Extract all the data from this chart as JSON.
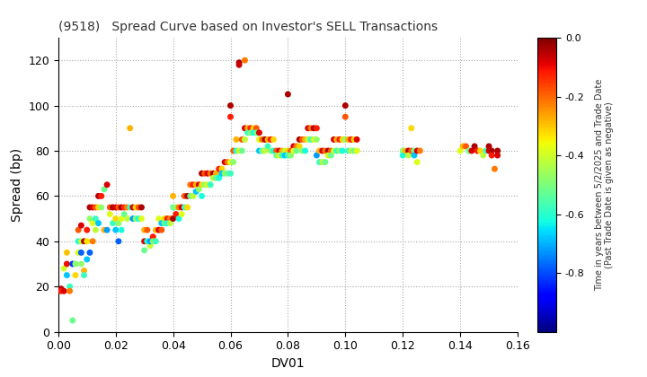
{
  "title": "(9518)   Spread Curve based on Investor's SELL Transactions",
  "xlabel": "DV01",
  "ylabel": "Spread (bp)",
  "colorbar_label": "Time in years between 5/2/2025 and Trade Date\n(Past Trade Date is given as negative)",
  "xlim": [
    0.0,
    0.16
  ],
  "ylim": [
    0,
    130
  ],
  "xticks": [
    0.0,
    0.02,
    0.04,
    0.06,
    0.08,
    0.1,
    0.12,
    0.14,
    0.16
  ],
  "yticks": [
    0,
    20,
    40,
    60,
    80,
    100,
    120
  ],
  "clim": [
    -1.0,
    0.0
  ],
  "cticks": [
    0.0,
    -0.2,
    -0.4,
    -0.6,
    -0.8
  ],
  "points": [
    [
      0.001,
      19,
      -0.05
    ],
    [
      0.001,
      18,
      -0.12
    ],
    [
      0.002,
      28,
      -0.4
    ],
    [
      0.002,
      18,
      -0.08
    ],
    [
      0.003,
      30,
      -0.1
    ],
    [
      0.003,
      25,
      -0.68
    ],
    [
      0.003,
      35,
      -0.3
    ],
    [
      0.004,
      20,
      -0.58
    ],
    [
      0.004,
      18,
      -0.22
    ],
    [
      0.005,
      5,
      -0.52
    ],
    [
      0.005,
      30,
      -0.82
    ],
    [
      0.006,
      25,
      -0.32
    ],
    [
      0.006,
      30,
      -0.48
    ],
    [
      0.007,
      35,
      -0.38
    ],
    [
      0.007,
      45,
      -0.18
    ],
    [
      0.007,
      40,
      -0.62
    ],
    [
      0.008,
      47,
      -0.08
    ],
    [
      0.008,
      35,
      -0.78
    ],
    [
      0.008,
      30,
      -0.48
    ],
    [
      0.008,
      40,
      -0.42
    ],
    [
      0.009,
      40,
      -0.04
    ],
    [
      0.009,
      27,
      -0.28
    ],
    [
      0.009,
      25,
      -0.58
    ],
    [
      0.01,
      40,
      -0.33
    ],
    [
      0.01,
      32,
      -0.68
    ],
    [
      0.01,
      45,
      -0.12
    ],
    [
      0.011,
      55,
      -0.04
    ],
    [
      0.011,
      50,
      -0.48
    ],
    [
      0.011,
      35,
      -0.78
    ],
    [
      0.012,
      40,
      -0.22
    ],
    [
      0.012,
      55,
      -0.08
    ],
    [
      0.012,
      48,
      -0.38
    ],
    [
      0.013,
      55,
      -0.18
    ],
    [
      0.013,
      50,
      -0.58
    ],
    [
      0.013,
      45,
      -0.42
    ],
    [
      0.014,
      60,
      -0.04
    ],
    [
      0.014,
      55,
      -0.32
    ],
    [
      0.014,
      48,
      -0.68
    ],
    [
      0.015,
      60,
      -0.12
    ],
    [
      0.015,
      55,
      -0.48
    ],
    [
      0.016,
      45,
      -0.28
    ],
    [
      0.016,
      63,
      -0.52
    ],
    [
      0.017,
      65,
      -0.08
    ],
    [
      0.017,
      45,
      -0.72
    ],
    [
      0.018,
      55,
      -0.18
    ],
    [
      0.018,
      52,
      -0.38
    ],
    [
      0.019,
      55,
      -0.04
    ],
    [
      0.019,
      48,
      -0.58
    ],
    [
      0.02,
      55,
      -0.08
    ],
    [
      0.02,
      50,
      -0.32
    ],
    [
      0.02,
      45,
      -0.68
    ],
    [
      0.021,
      55,
      -0.18
    ],
    [
      0.021,
      48,
      -0.48
    ],
    [
      0.021,
      40,
      -0.78
    ],
    [
      0.022,
      55,
      -0.04
    ],
    [
      0.022,
      50,
      -0.38
    ],
    [
      0.022,
      45,
      -0.62
    ],
    [
      0.023,
      55,
      -0.14
    ],
    [
      0.023,
      52,
      -0.52
    ],
    [
      0.024,
      55,
      -0.22
    ],
    [
      0.024,
      50,
      -0.42
    ],
    [
      0.025,
      90,
      -0.28
    ],
    [
      0.025,
      55,
      -0.58
    ],
    [
      0.026,
      55,
      -0.08
    ],
    [
      0.026,
      50,
      -0.72
    ],
    [
      0.027,
      55,
      -0.32
    ],
    [
      0.027,
      50,
      -0.48
    ],
    [
      0.028,
      55,
      -0.18
    ],
    [
      0.028,
      50,
      -0.62
    ],
    [
      0.029,
      55,
      -0.04
    ],
    [
      0.029,
      50,
      -0.38
    ],
    [
      0.03,
      40,
      -0.08
    ],
    [
      0.03,
      36,
      -0.52
    ],
    [
      0.03,
      45,
      -0.28
    ],
    [
      0.031,
      40,
      -0.62
    ],
    [
      0.031,
      45,
      -0.18
    ],
    [
      0.032,
      38,
      -0.42
    ],
    [
      0.032,
      40,
      -0.72
    ],
    [
      0.033,
      42,
      -0.12
    ],
    [
      0.033,
      40,
      -0.48
    ],
    [
      0.034,
      45,
      -0.28
    ],
    [
      0.034,
      40,
      -0.58
    ],
    [
      0.035,
      45,
      -0.08
    ],
    [
      0.035,
      50,
      -0.38
    ],
    [
      0.036,
      45,
      -0.18
    ],
    [
      0.036,
      48,
      -0.68
    ],
    [
      0.037,
      50,
      -0.32
    ],
    [
      0.037,
      48,
      -0.52
    ],
    [
      0.038,
      50,
      -0.12
    ],
    [
      0.038,
      48,
      -0.62
    ],
    [
      0.039,
      50,
      -0.22
    ],
    [
      0.039,
      48,
      -0.42
    ],
    [
      0.04,
      50,
      -0.04
    ],
    [
      0.04,
      60,
      -0.28
    ],
    [
      0.04,
      55,
      -0.52
    ],
    [
      0.041,
      52,
      -0.12
    ],
    [
      0.041,
      55,
      -0.48
    ],
    [
      0.042,
      55,
      -0.22
    ],
    [
      0.042,
      50,
      -0.62
    ],
    [
      0.043,
      55,
      -0.08
    ],
    [
      0.043,
      52,
      -0.38
    ],
    [
      0.044,
      60,
      -0.18
    ],
    [
      0.044,
      55,
      -0.58
    ],
    [
      0.045,
      60,
      -0.04
    ],
    [
      0.045,
      55,
      -0.32
    ],
    [
      0.046,
      65,
      -0.22
    ],
    [
      0.046,
      60,
      -0.52
    ],
    [
      0.047,
      65,
      -0.12
    ],
    [
      0.047,
      60,
      -0.42
    ],
    [
      0.048,
      65,
      -0.28
    ],
    [
      0.048,
      62,
      -0.68
    ],
    [
      0.049,
      65,
      -0.08
    ],
    [
      0.049,
      63,
      -0.48
    ],
    [
      0.05,
      70,
      -0.04
    ],
    [
      0.05,
      65,
      -0.32
    ],
    [
      0.05,
      60,
      -0.62
    ],
    [
      0.051,
      70,
      -0.18
    ],
    [
      0.051,
      65,
      -0.48
    ],
    [
      0.052,
      70,
      -0.08
    ],
    [
      0.052,
      65,
      -0.38
    ],
    [
      0.053,
      70,
      -0.22
    ],
    [
      0.053,
      65,
      -0.58
    ],
    [
      0.054,
      70,
      -0.04
    ],
    [
      0.054,
      68,
      -0.42
    ],
    [
      0.055,
      70,
      -0.28
    ],
    [
      0.055,
      68,
      -0.52
    ],
    [
      0.056,
      72,
      -0.12
    ],
    [
      0.056,
      68,
      -0.62
    ],
    [
      0.057,
      72,
      -0.32
    ],
    [
      0.057,
      70,
      -0.68
    ],
    [
      0.058,
      75,
      -0.08
    ],
    [
      0.058,
      70,
      -0.48
    ],
    [
      0.059,
      75,
      -0.22
    ],
    [
      0.059,
      70,
      -0.52
    ],
    [
      0.06,
      100,
      -0.04
    ],
    [
      0.06,
      95,
      -0.12
    ],
    [
      0.06,
      75,
      -0.38
    ],
    [
      0.06,
      70,
      -0.58
    ],
    [
      0.061,
      80,
      -0.18
    ],
    [
      0.061,
      75,
      -0.48
    ],
    [
      0.062,
      85,
      -0.28
    ],
    [
      0.062,
      80,
      -0.62
    ],
    [
      0.063,
      119,
      -0.04
    ],
    [
      0.063,
      118,
      -0.06
    ],
    [
      0.063,
      80,
      -0.38
    ],
    [
      0.064,
      85,
      -0.18
    ],
    [
      0.064,
      80,
      -0.52
    ],
    [
      0.065,
      90,
      -0.08
    ],
    [
      0.065,
      85,
      -0.42
    ],
    [
      0.065,
      120,
      -0.22
    ],
    [
      0.066,
      90,
      -0.28
    ],
    [
      0.066,
      88,
      -0.58
    ],
    [
      0.067,
      90,
      -0.12
    ],
    [
      0.067,
      88,
      -0.48
    ],
    [
      0.068,
      90,
      -0.32
    ],
    [
      0.068,
      88,
      -0.62
    ],
    [
      0.069,
      90,
      -0.18
    ],
    [
      0.069,
      88,
      -0.52
    ],
    [
      0.07,
      88,
      -0.08
    ],
    [
      0.07,
      85,
      -0.38
    ],
    [
      0.07,
      80,
      -0.68
    ],
    [
      0.071,
      85,
      -0.22
    ],
    [
      0.071,
      80,
      -0.52
    ],
    [
      0.072,
      85,
      -0.04
    ],
    [
      0.072,
      80,
      -0.42
    ],
    [
      0.073,
      85,
      -0.28
    ],
    [
      0.073,
      82,
      -0.58
    ],
    [
      0.074,
      85,
      -0.12
    ],
    [
      0.074,
      80,
      -0.48
    ],
    [
      0.075,
      85,
      -0.32
    ],
    [
      0.075,
      80,
      -0.62
    ],
    [
      0.076,
      80,
      -0.18
    ],
    [
      0.076,
      78,
      -0.52
    ],
    [
      0.077,
      80,
      -0.08
    ],
    [
      0.077,
      78,
      -0.38
    ],
    [
      0.078,
      80,
      -0.28
    ],
    [
      0.078,
      78,
      -0.58
    ],
    [
      0.079,
      80,
      -0.42
    ],
    [
      0.079,
      78,
      -0.68
    ],
    [
      0.08,
      105,
      -0.04
    ],
    [
      0.08,
      80,
      -0.32
    ],
    [
      0.08,
      78,
      -0.58
    ],
    [
      0.081,
      80,
      -0.18
    ],
    [
      0.081,
      78,
      -0.48
    ],
    [
      0.082,
      82,
      -0.08
    ],
    [
      0.082,
      80,
      -0.38
    ],
    [
      0.083,
      82,
      -0.22
    ],
    [
      0.083,
      80,
      -0.52
    ],
    [
      0.084,
      85,
      -0.04
    ],
    [
      0.084,
      82,
      -0.32
    ],
    [
      0.085,
      85,
      -0.18
    ],
    [
      0.085,
      80,
      -0.48
    ],
    [
      0.086,
      85,
      -0.28
    ],
    [
      0.086,
      80,
      -0.62
    ],
    [
      0.087,
      90,
      -0.08
    ],
    [
      0.087,
      85,
      -0.42
    ],
    [
      0.088,
      90,
      -0.22
    ],
    [
      0.088,
      85,
      -0.58
    ],
    [
      0.089,
      90,
      -0.04
    ],
    [
      0.089,
      85,
      -0.38
    ],
    [
      0.09,
      90,
      -0.12
    ],
    [
      0.09,
      85,
      -0.48
    ],
    [
      0.09,
      78,
      -0.72
    ],
    [
      0.091,
      80,
      -0.28
    ],
    [
      0.091,
      75,
      -0.58
    ],
    [
      0.092,
      80,
      -0.08
    ],
    [
      0.092,
      75,
      -0.42
    ],
    [
      0.093,
      80,
      -0.22
    ],
    [
      0.093,
      75,
      -0.52
    ],
    [
      0.094,
      80,
      -0.04
    ],
    [
      0.094,
      78,
      -0.38
    ],
    [
      0.095,
      80,
      -0.18
    ],
    [
      0.095,
      78,
      -0.52
    ],
    [
      0.096,
      85,
      -0.08
    ],
    [
      0.096,
      80,
      -0.42
    ],
    [
      0.097,
      85,
      -0.28
    ],
    [
      0.097,
      80,
      -0.58
    ],
    [
      0.098,
      85,
      -0.12
    ],
    [
      0.098,
      80,
      -0.48
    ],
    [
      0.099,
      85,
      -0.32
    ],
    [
      0.099,
      80,
      -0.62
    ],
    [
      0.1,
      100,
      -0.04
    ],
    [
      0.1,
      95,
      -0.18
    ],
    [
      0.1,
      85,
      -0.48
    ],
    [
      0.101,
      85,
      -0.28
    ],
    [
      0.101,
      80,
      -0.58
    ],
    [
      0.102,
      85,
      -0.12
    ],
    [
      0.102,
      80,
      -0.42
    ],
    [
      0.103,
      85,
      -0.32
    ],
    [
      0.103,
      80,
      -0.52
    ],
    [
      0.104,
      85,
      -0.08
    ],
    [
      0.104,
      80,
      -0.38
    ],
    [
      0.12,
      80,
      -0.48
    ],
    [
      0.12,
      78,
      -0.62
    ],
    [
      0.121,
      80,
      -0.28
    ],
    [
      0.122,
      80,
      -0.04
    ],
    [
      0.122,
      78,
      -0.42
    ],
    [
      0.123,
      80,
      -0.18
    ],
    [
      0.123,
      90,
      -0.32
    ],
    [
      0.124,
      80,
      -0.52
    ],
    [
      0.124,
      78,
      -0.68
    ],
    [
      0.125,
      80,
      -0.08
    ],
    [
      0.125,
      75,
      -0.38
    ],
    [
      0.126,
      80,
      -0.22
    ],
    [
      0.14,
      80,
      -0.38
    ],
    [
      0.141,
      82,
      -0.28
    ],
    [
      0.142,
      82,
      -0.18
    ],
    [
      0.143,
      80,
      -0.52
    ],
    [
      0.144,
      80,
      -0.08
    ],
    [
      0.145,
      82,
      -0.04
    ],
    [
      0.146,
      80,
      -0.12
    ],
    [
      0.147,
      80,
      -0.32
    ],
    [
      0.148,
      78,
      -0.42
    ],
    [
      0.149,
      80,
      -0.58
    ],
    [
      0.15,
      82,
      -0.04
    ],
    [
      0.15,
      80,
      -0.08
    ],
    [
      0.151,
      80,
      -0.04
    ],
    [
      0.151,
      78,
      -0.12
    ],
    [
      0.152,
      72,
      -0.22
    ],
    [
      0.153,
      80,
      -0.04
    ],
    [
      0.153,
      78,
      -0.08
    ]
  ],
  "marker_size": 25,
  "background_color": "#ffffff",
  "grid_color": "#aaaaaa",
  "grid_style": ":"
}
